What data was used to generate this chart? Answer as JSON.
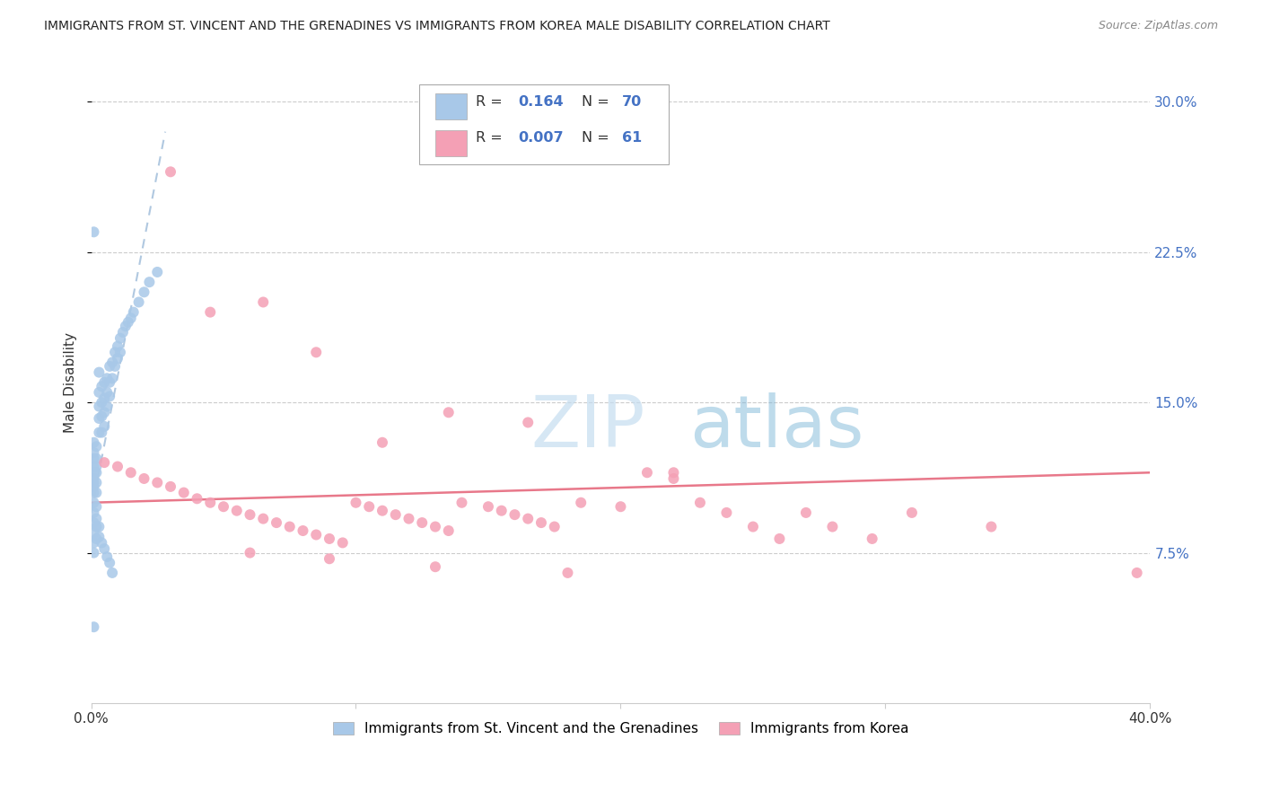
{
  "title": "IMMIGRANTS FROM ST. VINCENT AND THE GRENADINES VS IMMIGRANTS FROM KOREA MALE DISABILITY CORRELATION CHART",
  "source": "Source: ZipAtlas.com",
  "ylabel": "Male Disability",
  "xlim": [
    0.0,
    0.4
  ],
  "ylim": [
    0.0,
    0.32
  ],
  "series1_color": "#a8c8e8",
  "series2_color": "#f4a0b5",
  "trendline1_color": "#a8c8e8",
  "trendline2_color": "#e8788a",
  "sv_x": [
    0.001,
    0.001,
    0.001,
    0.001,
    0.001,
    0.001,
    0.001,
    0.001,
    0.001,
    0.001,
    0.002,
    0.002,
    0.002,
    0.002,
    0.002,
    0.002,
    0.002,
    0.003,
    0.003,
    0.003,
    0.003,
    0.003,
    0.004,
    0.004,
    0.004,
    0.004,
    0.005,
    0.005,
    0.005,
    0.005,
    0.006,
    0.006,
    0.006,
    0.007,
    0.007,
    0.007,
    0.008,
    0.008,
    0.009,
    0.009,
    0.01,
    0.01,
    0.011,
    0.011,
    0.012,
    0.013,
    0.014,
    0.015,
    0.016,
    0.018,
    0.02,
    0.022,
    0.025,
    0.001,
    0.001,
    0.001,
    0.001,
    0.001,
    0.002,
    0.002,
    0.002,
    0.003,
    0.003,
    0.004,
    0.005,
    0.006,
    0.007,
    0.008,
    0.001,
    0.001
  ],
  "sv_y": [
    0.13,
    0.125,
    0.122,
    0.118,
    0.115,
    0.112,
    0.11,
    0.108,
    0.105,
    0.1,
    0.128,
    0.122,
    0.118,
    0.115,
    0.11,
    0.105,
    0.098,
    0.165,
    0.155,
    0.148,
    0.142,
    0.135,
    0.158,
    0.15,
    0.143,
    0.135,
    0.16,
    0.152,
    0.145,
    0.138,
    0.162,
    0.155,
    0.148,
    0.168,
    0.16,
    0.153,
    0.17,
    0.162,
    0.175,
    0.168,
    0.178,
    0.172,
    0.182,
    0.175,
    0.185,
    0.188,
    0.19,
    0.192,
    0.195,
    0.2,
    0.205,
    0.21,
    0.215,
    0.095,
    0.09,
    0.085,
    0.08,
    0.075,
    0.092,
    0.088,
    0.082,
    0.088,
    0.083,
    0.08,
    0.077,
    0.073,
    0.07,
    0.065,
    0.235,
    0.038
  ],
  "korea_x": [
    0.005,
    0.01,
    0.015,
    0.02,
    0.025,
    0.03,
    0.035,
    0.04,
    0.045,
    0.05,
    0.055,
    0.06,
    0.065,
    0.07,
    0.075,
    0.08,
    0.085,
    0.09,
    0.095,
    0.1,
    0.105,
    0.11,
    0.115,
    0.12,
    0.125,
    0.13,
    0.135,
    0.14,
    0.15,
    0.155,
    0.16,
    0.165,
    0.17,
    0.175,
    0.185,
    0.2,
    0.21,
    0.22,
    0.23,
    0.24,
    0.25,
    0.26,
    0.27,
    0.28,
    0.295,
    0.31,
    0.34,
    0.395,
    0.03,
    0.045,
    0.065,
    0.085,
    0.11,
    0.135,
    0.165,
    0.22,
    0.06,
    0.09,
    0.13,
    0.18
  ],
  "korea_y": [
    0.12,
    0.118,
    0.115,
    0.112,
    0.11,
    0.108,
    0.105,
    0.102,
    0.1,
    0.098,
    0.096,
    0.094,
    0.092,
    0.09,
    0.088,
    0.086,
    0.084,
    0.082,
    0.08,
    0.1,
    0.098,
    0.096,
    0.094,
    0.092,
    0.09,
    0.088,
    0.086,
    0.1,
    0.098,
    0.096,
    0.094,
    0.092,
    0.09,
    0.088,
    0.1,
    0.098,
    0.115,
    0.112,
    0.1,
    0.095,
    0.088,
    0.082,
    0.095,
    0.088,
    0.082,
    0.095,
    0.088,
    0.065,
    0.265,
    0.195,
    0.2,
    0.175,
    0.13,
    0.145,
    0.14,
    0.115,
    0.075,
    0.072,
    0.068,
    0.065
  ]
}
